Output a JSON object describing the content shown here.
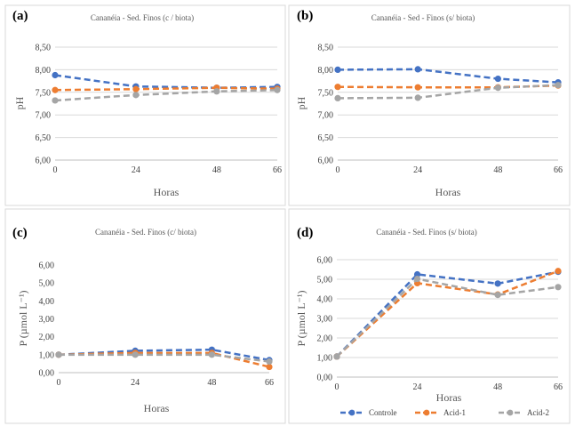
{
  "colors": {
    "Controle": "#4472c4",
    "Acid-1": "#ed7d31",
    "Acid-2": "#a5a5a5"
  },
  "legend": {
    "items": [
      "Controle",
      "Acid-1",
      "Acid-2"
    ],
    "position": "bottom"
  },
  "chart_data": [
    {
      "panel": "(a)",
      "type": "line",
      "title": "Cananéia - Sed. Finos (c / biota)",
      "xlabel": "Horas",
      "ylabel": "pH",
      "x": [
        0,
        24,
        48,
        66
      ],
      "xticks": [
        "0",
        "24",
        "48",
        "66"
      ],
      "ylim": [
        6.0,
        8.5
      ],
      "yticks": [
        "6,00",
        "6,50",
        "7,00",
        "7,50",
        "8,00",
        "8,50"
      ],
      "grid": true,
      "series": [
        {
          "name": "Controle",
          "values": [
            7.88,
            7.63,
            7.6,
            7.62
          ]
        },
        {
          "name": "Acid-1",
          "values": [
            7.55,
            7.57,
            7.6,
            7.58
          ]
        },
        {
          "name": "Acid-2",
          "values": [
            7.32,
            7.44,
            7.52,
            7.55
          ]
        }
      ]
    },
    {
      "panel": "(b)",
      "type": "line",
      "title": "Cananéia - Sed - Finos (s/ biota)",
      "xlabel": "Horas",
      "ylabel": "pH",
      "x": [
        0,
        24,
        48,
        66
      ],
      "xticks": [
        "0",
        "24",
        "48",
        "66"
      ],
      "ylim": [
        6.0,
        8.5
      ],
      "yticks": [
        "6,00",
        "6,50",
        "7,00",
        "7,50",
        "8,00",
        "8,50"
      ],
      "grid": true,
      "series": [
        {
          "name": "Controle",
          "values": [
            8.0,
            8.01,
            7.8,
            7.72
          ]
        },
        {
          "name": "Acid-1",
          "values": [
            7.62,
            7.61,
            7.61,
            7.65
          ]
        },
        {
          "name": "Acid-2",
          "values": [
            7.37,
            7.38,
            7.6,
            7.66
          ]
        }
      ]
    },
    {
      "panel": "(c)",
      "type": "line",
      "title": "Cananéia - Sed. Finos (c/ biota)",
      "xlabel": "Horas",
      "ylabel": "P (µmol L⁻¹)",
      "x": [
        0,
        24,
        48,
        66
      ],
      "xticks": [
        "0",
        "24",
        "48",
        "66"
      ],
      "ylim": [
        0,
        6
      ],
      "yticks": [
        "0,00",
        "1,00",
        "2,00",
        "3,00",
        "4,00",
        "5,00",
        "6,00"
      ],
      "grid": false,
      "series": [
        {
          "name": "Controle",
          "values": [
            1.0,
            1.22,
            1.28,
            0.7
          ]
        },
        {
          "name": "Acid-1",
          "values": [
            1.0,
            1.1,
            1.1,
            0.32
          ]
        },
        {
          "name": "Acid-2",
          "values": [
            1.0,
            1.0,
            1.0,
            0.62
          ]
        }
      ]
    },
    {
      "panel": "(d)",
      "type": "line",
      "title": "Cananéia - Sed. Finos (s/ biota)",
      "xlabel": "Horas",
      "ylabel": "P (µmol L⁻¹)",
      "x": [
        0,
        24,
        48,
        66
      ],
      "xticks": [
        "0",
        "24",
        "48",
        "66"
      ],
      "ylim": [
        0,
        6
      ],
      "yticks": [
        "0,00",
        "1,00",
        "2,00",
        "3,00",
        "4,00",
        "5,00",
        "6,00"
      ],
      "grid": true,
      "series": [
        {
          "name": "Controle",
          "values": [
            1.05,
            5.25,
            4.78,
            5.38
          ]
        },
        {
          "name": "Acid-1",
          "values": [
            1.05,
            4.8,
            4.22,
            5.42
          ]
        },
        {
          "name": "Acid-2",
          "values": [
            1.05,
            5.02,
            4.2,
            4.6
          ]
        }
      ]
    }
  ]
}
